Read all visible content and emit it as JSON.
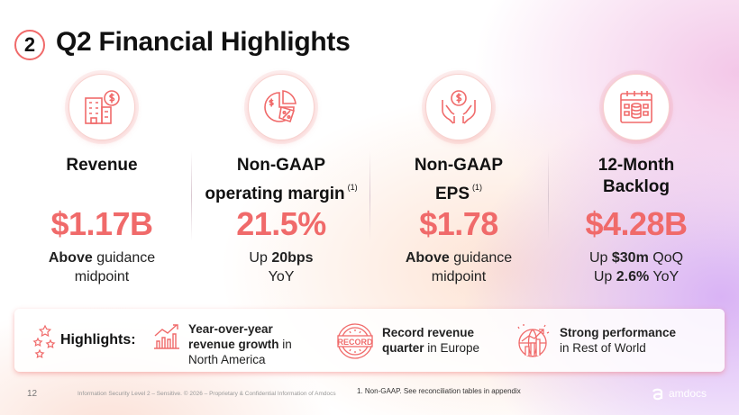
{
  "slide": {
    "number": "2",
    "title": "Q2 Financial Highlights"
  },
  "kpis": [
    {
      "icon": "building-dollar-icon",
      "label_line1": "Revenue",
      "label_line2": "",
      "footnote": "",
      "value": "$1.17B",
      "sub_bold": "Above",
      "sub_rest1": " guidance",
      "sub_line2": "midpoint"
    },
    {
      "icon": "pie-percent-icon",
      "label_line1": "Non-GAAP",
      "label_line2": "operating margin",
      "footnote": "(1)",
      "value": "21.5%",
      "sub_pre": "Up ",
      "sub_bold": "20bps",
      "sub_line2": "YoY"
    },
    {
      "icon": "hands-dollar-icon",
      "label_line1": "Non-GAAP",
      "label_line2": "EPS",
      "footnote": "(1)",
      "value": "$1.78",
      "sub_bold": "Above",
      "sub_rest1": " guidance",
      "sub_line2": "midpoint"
    },
    {
      "icon": "calendar-database-icon",
      "label_line1": "12-Month",
      "label_line2": "Backlog",
      "footnote": "",
      "value": "$4.28B",
      "l1_pre": "Up ",
      "l1_bold": "$30m",
      "l1_post": " QoQ",
      "l2_pre": "Up ",
      "l2_bold": "2.6%",
      "l2_post": " YoY"
    }
  ],
  "highlights": {
    "title": "Highlights:",
    "items": [
      {
        "icon": "growth-chart-icon",
        "bold1": "Year-over-year",
        "bold2": "revenue growth",
        "rest2": " in",
        "line3": "North America"
      },
      {
        "icon": "record-stamp-icon",
        "bold1": "Record revenue",
        "bold2": "quarter",
        "rest2": " in Europe"
      },
      {
        "icon": "globe-growth-icon",
        "bold1": "Strong performance",
        "line2": "in Rest of World"
      }
    ]
  },
  "footer": {
    "page_number": "12",
    "confidentiality": "Information Security Level 2 – Sensitive. © 2026 – Proprietary & Confidential Information of Amdocs",
    "note": "1.    Non-GAAP. See reconciliation tables in appendix",
    "logo_text": "amdocs"
  },
  "colors": {
    "accent": "#f06a6a",
    "text": "#111111"
  }
}
